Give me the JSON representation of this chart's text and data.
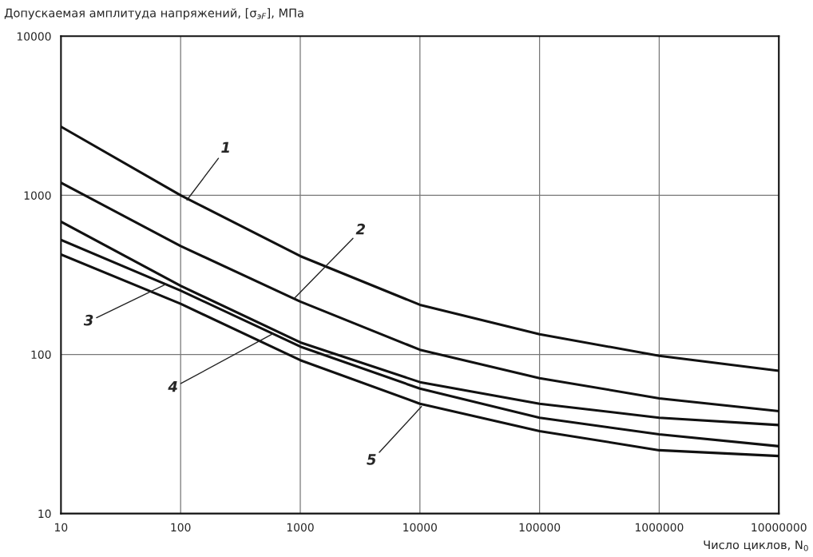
{
  "chart_data": {
    "type": "line",
    "ylabel": "Допускаемая амплитуда напряжений, [σ$_{эF}$], МПа",
    "xlabel": "Число циклов, N$_{0}$",
    "x": [
      10,
      100,
      1000,
      10000,
      100000,
      1000000,
      10000000
    ],
    "series": [
      {
        "color": "#111111",
        "values": [
          2700,
          1000,
          415,
          205,
          134,
          98,
          79
        ]
      },
      {
        "color": "#111111",
        "values": [
          1200,
          480,
          215,
          107,
          71,
          53,
          44
        ]
      },
      {
        "color": "#111111",
        "values": [
          683,
          270,
          119,
          67,
          49,
          40,
          36
        ]
      },
      {
        "color": "#111111",
        "values": [
          525,
          252,
          112,
          61,
          40,
          31.5,
          26.5
        ]
      },
      {
        "color": "#111111",
        "values": [
          425,
          208,
          92,
          49,
          33,
          25,
          23
        ]
      }
    ],
    "log": "xy",
    "xlim": [
      10,
      10000000
    ],
    "ylim": [
      10,
      10000
    ],
    "xticks": [
      10,
      100,
      1000,
      10000,
      100000,
      1000000,
      10000000
    ],
    "yticks": [
      10,
      100,
      1000,
      10000
    ],
    "grid": true,
    "line_style": "solid",
    "marker": "none",
    "annotations": [
      {
        "text": "1",
        "x": 113,
        "y": 935
      },
      {
        "text": "2",
        "x": 890,
        "y": 225
      },
      {
        "text": "3",
        "x": 76,
        "y": 277
      },
      {
        "text": "4",
        "x": 590,
        "y": 135
      },
      {
        "text": "5",
        "x": 10300,
        "y": 47
      }
    ]
  }
}
